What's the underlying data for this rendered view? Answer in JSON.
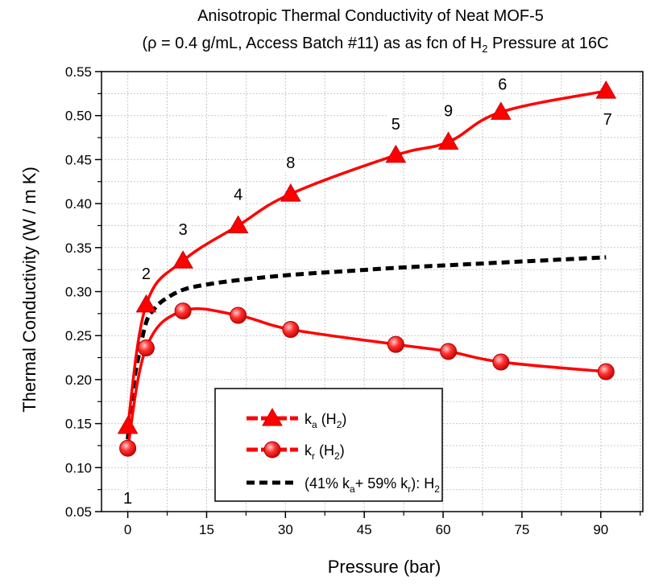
{
  "chart_data": {
    "type": "line",
    "title_line1": "Anisotropic Thermal Conductivity of Neat MOF-5",
    "title_line2": {
      "before": "(ρ = 0.4 g/mL, Access Batch #11) as as fcn of H",
      "sub": "2",
      "after": " Pressure at 16C"
    },
    "xlabel": "Pressure (bar)",
    "ylabel": "Thermal Conductivity (W / m K)",
    "xlim": [
      -5,
      98
    ],
    "ylim": [
      0.05,
      0.55
    ],
    "xticks": [
      "0",
      "15",
      "30",
      "45",
      "60",
      "75",
      "90"
    ],
    "yticks": [
      "0.05",
      "0.10",
      "0.15",
      "0.20",
      "0.25",
      "0.30",
      "0.35",
      "0.40",
      "0.45",
      "0.50",
      "0.55"
    ],
    "grid": true,
    "legend_position": "bottom-center",
    "series": [
      {
        "name_main": "k",
        "name_sub": "a",
        "name_tail": " (H",
        "name_sub2": "2",
        "name_end": ")",
        "marker": "triangle",
        "color": "#ff0000",
        "x": [
          0,
          3.5,
          10.5,
          21,
          31,
          51,
          61,
          71,
          91
        ],
        "y": [
          0.147,
          0.285,
          0.335,
          0.375,
          0.411,
          0.455,
          0.47,
          0.504,
          0.528
        ],
        "labels": [
          "1",
          "2",
          "3",
          "4",
          "8",
          "5",
          "9",
          "6",
          "7"
        ]
      },
      {
        "name_main": "k",
        "name_sub": "r",
        "name_tail": " (H",
        "name_sub2": "2",
        "name_end": ")",
        "marker": "circle",
        "color": "#ff0000",
        "x": [
          0,
          3.5,
          10.5,
          21,
          31,
          51,
          61,
          71,
          91
        ],
        "y": [
          0.122,
          0.236,
          0.278,
          0.273,
          0.257,
          0.24,
          0.232,
          0.22,
          0.209
        ]
      },
      {
        "name_main": "(41% k",
        "name_sub": "a",
        "name_tail": "+ 59% k",
        "name_sub2": "r",
        "name_end": "): H",
        "name_sub3": "2",
        "marker": "none",
        "color": "#000000",
        "dashed": true,
        "x": [
          0,
          1,
          2,
          3.5,
          5,
          7,
          10.5,
          15,
          21,
          31,
          41,
          51,
          61,
          71,
          81,
          91
        ],
        "y": [
          0.132,
          0.19,
          0.225,
          0.265,
          0.28,
          0.291,
          0.302,
          0.308,
          0.313,
          0.319,
          0.323,
          0.327,
          0.33,
          0.333,
          0.336,
          0.339
        ]
      }
    ]
  }
}
